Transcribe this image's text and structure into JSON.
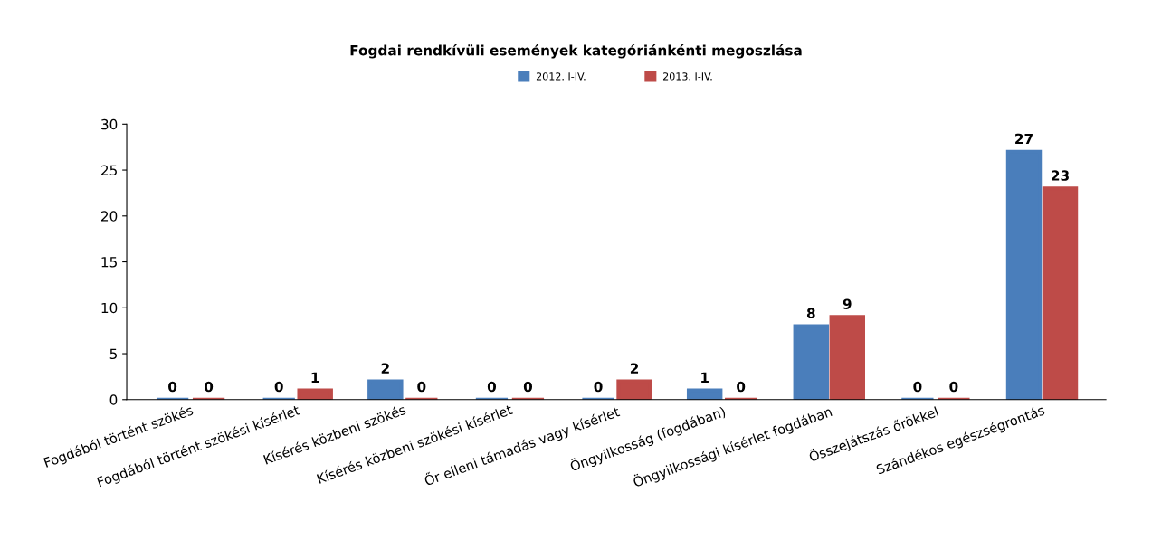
{
  "chart_data": {
    "type": "bar",
    "title": "Fogdai rendkívüli események kategóriánkénti megoszlása",
    "categories": [
      "Fogdából történt szökés",
      "Fogdából történt szökési kísérlet",
      "Kísérés közbeni szökés",
      "Kísérés közbeni szökési kísérlet",
      "Őr elleni támadás vagy kísérlet",
      "Öngyilkosság (fogdában)",
      "Öngyilkossági kísérlet fogdában",
      "Összejátszás őrökkel",
      "Szándékos egészségrontás"
    ],
    "series": [
      {
        "name": "2012. I-IV.",
        "color": "#4a7ebb",
        "values": [
          0,
          0,
          2,
          0,
          0,
          1,
          8,
          0,
          27
        ]
      },
      {
        "name": "2013. I-IV.",
        "color": "#be4b48",
        "values": [
          0,
          1,
          0,
          0,
          2,
          0,
          9,
          0,
          23
        ]
      }
    ],
    "ylim": [
      0,
      30
    ],
    "yticks": [
      0,
      5,
      10,
      15,
      20,
      25,
      30
    ],
    "data_labels": true,
    "legend": "top",
    "grid": false
  }
}
